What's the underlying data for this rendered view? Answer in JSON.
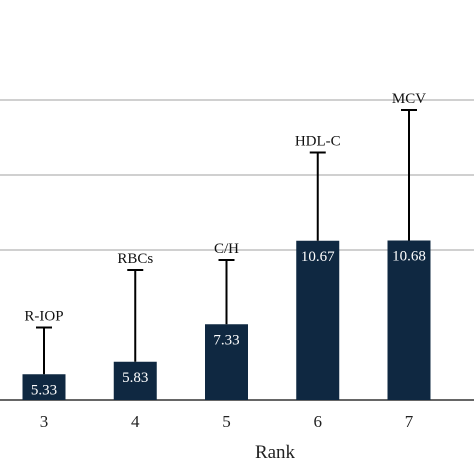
{
  "chart_data": {
    "type": "bar",
    "xlabel": "Rank",
    "ylabel": "",
    "ylim": [
      4.3,
      17.8
    ],
    "gridlines": [
      4.3,
      10.3,
      13.3,
      16.3
    ],
    "grid": true,
    "colors": {
      "bar": "#0f2841",
      "errorbar": "#000000",
      "grid": "#b5b5b5",
      "axis": "#333333"
    },
    "categories": [
      "3",
      "4",
      "5",
      "6",
      "7"
    ],
    "bar_labels": [
      "R-IOP",
      "RBCs",
      "C/H",
      "HDL-C",
      "MCV"
    ],
    "values": [
      5.33,
      5.83,
      7.33,
      10.67,
      10.68
    ],
    "value_labels": [
      "5.33",
      "5.83",
      "7.33",
      "10.67",
      "10.68"
    ],
    "error_upper": [
      7.2,
      9.5,
      9.9,
      14.2,
      15.9
    ]
  }
}
